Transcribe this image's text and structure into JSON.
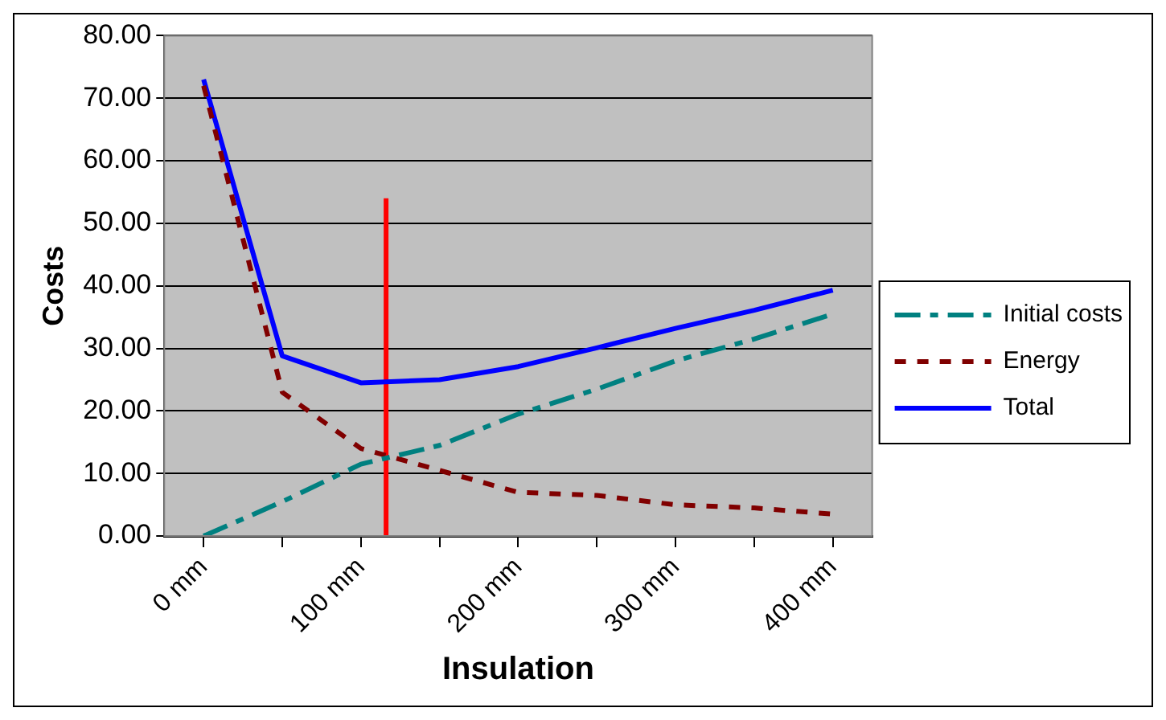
{
  "chart_data": {
    "type": "line",
    "xlabel": "Insulation",
    "ylabel": "Costs",
    "x": [
      0,
      50,
      100,
      150,
      200,
      250,
      300,
      350,
      400
    ],
    "xlim": [
      -25,
      425
    ],
    "xticks": [
      {
        "value": 0,
        "label": "0 mm"
      },
      {
        "value": 50,
        "label": null
      },
      {
        "value": 100,
        "label": "100 mm"
      },
      {
        "value": 150,
        "label": null
      },
      {
        "value": 200,
        "label": "200 mm"
      },
      {
        "value": 250,
        "label": null
      },
      {
        "value": 300,
        "label": "300 mm"
      },
      {
        "value": 350,
        "label": null
      },
      {
        "value": 400,
        "label": "400 mm"
      }
    ],
    "ylim": [
      0,
      80
    ],
    "yticks": [
      {
        "value": 0,
        "label": "0.00"
      },
      {
        "value": 10,
        "label": "10.00"
      },
      {
        "value": 20,
        "label": "20.00"
      },
      {
        "value": 30,
        "label": "30.00"
      },
      {
        "value": 40,
        "label": "40.00"
      },
      {
        "value": 50,
        "label": "50.00"
      },
      {
        "value": 60,
        "label": "60.00"
      },
      {
        "value": 70,
        "label": "70.00"
      },
      {
        "value": 80,
        "label": "80.00"
      }
    ],
    "grid": "y",
    "legend": "right",
    "marker": "none",
    "series": [
      {
        "name": "Initial costs",
        "color": "#008080",
        "line_style": "dashed",
        "values": [
          0,
          5.5,
          11.5,
          14.5,
          19.5,
          23.5,
          28,
          31.5,
          35.5
        ]
      },
      {
        "name": "Energy",
        "color": "#800000",
        "line_style": "dotted",
        "values": [
          72,
          23,
          14,
          10.5,
          7,
          6.5,
          5,
          4.5,
          3.5
        ]
      },
      {
        "name": "Total",
        "color": "#0000ff",
        "line_style": "solid",
        "values": [
          73,
          28.8,
          24.5,
          25,
          27.1,
          30.1,
          33.2,
          36.1,
          39.3
        ]
      },
      {
        "color": "#ff0000",
        "line_style": "solid",
        "x": [
          116,
          116
        ],
        "values": [
          0,
          54
        ]
      }
    ]
  }
}
